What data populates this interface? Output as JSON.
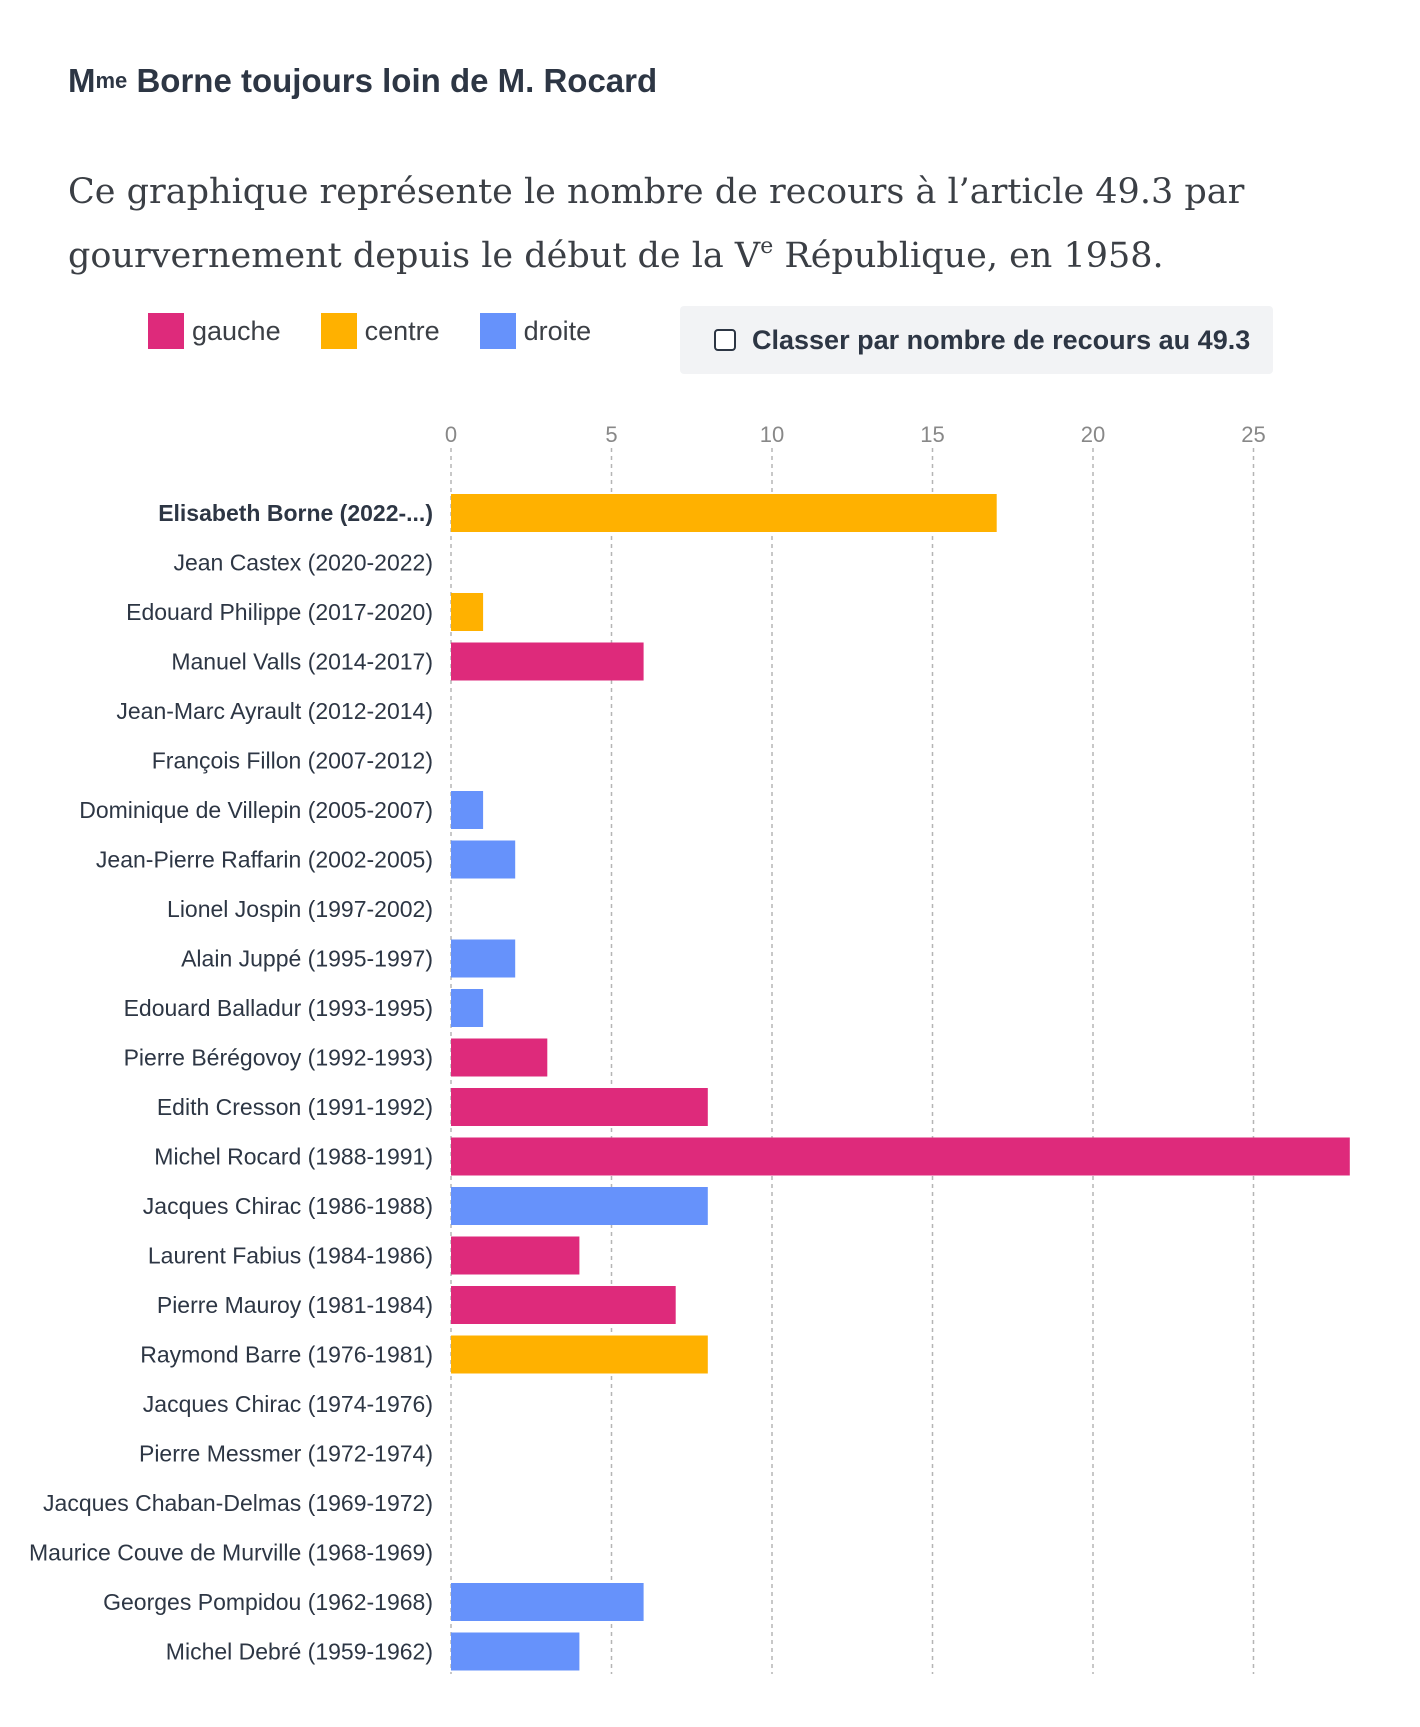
{
  "title": {
    "main": "M",
    "sup": "me",
    "rest": " Borne toujours loin de M. Rocard"
  },
  "subtitle": {
    "line1": "Ce graphique représente le nombre de recours à l’article 49.3 par",
    "line2_pre": "gourvernement depuis le début de la V",
    "line2_sup": "e",
    "line2_post": " République, en 1958."
  },
  "legend": [
    {
      "label": "gauche",
      "color": "#de2a7b"
    },
    {
      "label": "centre",
      "color": "#ffb100"
    },
    {
      "label": "droite",
      "color": "#6692fb"
    }
  ],
  "sort_control": {
    "label": "Classer par nombre de recours au 49.3",
    "checked": false
  },
  "chart_data": {
    "type": "bar",
    "orientation": "horizontal",
    "title": "",
    "xlabel": "",
    "ylabel": "",
    "xlim": [
      0,
      28
    ],
    "x_ticks": [
      0,
      5,
      10,
      15,
      20,
      25
    ],
    "grid": "vertical dashed",
    "colors": {
      "gauche": "#de2a7b",
      "centre": "#ffb100",
      "droite": "#6692fb"
    },
    "categories": [
      "Elisabeth Borne (2022-...)",
      "Jean Castex (2020-2022)",
      "Edouard Philippe (2017-2020)",
      "Manuel Valls (2014-2017)",
      "Jean-Marc Ayrault (2012-2014)",
      "François Fillon (2007-2012)",
      "Dominique de Villepin (2005-2007)",
      "Jean-Pierre Raffarin (2002-2005)",
      "Lionel Jospin (1997-2002)",
      "Alain Juppé (1995-1997)",
      "Edouard Balladur (1993-1995)",
      "Pierre Bérégovoy (1992-1993)",
      "Edith Cresson (1991-1992)",
      "Michel Rocard (1988-1991)",
      "Jacques Chirac (1986-1988)",
      "Laurent Fabius (1984-1986)",
      "Pierre Mauroy (1981-1984)",
      "Raymond Barre (1976-1981)",
      "Jacques Chirac (1974-1976)",
      "Pierre Messmer (1972-1974)",
      "Jacques Chaban-Delmas (1969-1972)",
      "Maurice Couve de Murville (1968-1969)",
      "Georges Pompidou (1962-1968)",
      "Michel Debré (1959-1962)"
    ],
    "values": [
      17,
      0,
      1,
      6,
      0,
      0,
      1,
      2,
      0,
      2,
      1,
      3,
      8,
      28,
      8,
      4,
      7,
      8,
      0,
      0,
      0,
      0,
      6,
      4
    ],
    "groups": [
      "centre",
      "droite",
      "centre",
      "gauche",
      "gauche",
      "droite",
      "droite",
      "droite",
      "gauche",
      "droite",
      "droite",
      "gauche",
      "gauche",
      "gauche",
      "droite",
      "gauche",
      "gauche",
      "centre",
      "droite",
      "droite",
      "droite",
      "droite",
      "droite",
      "droite"
    ],
    "highlighted": [
      0
    ]
  }
}
